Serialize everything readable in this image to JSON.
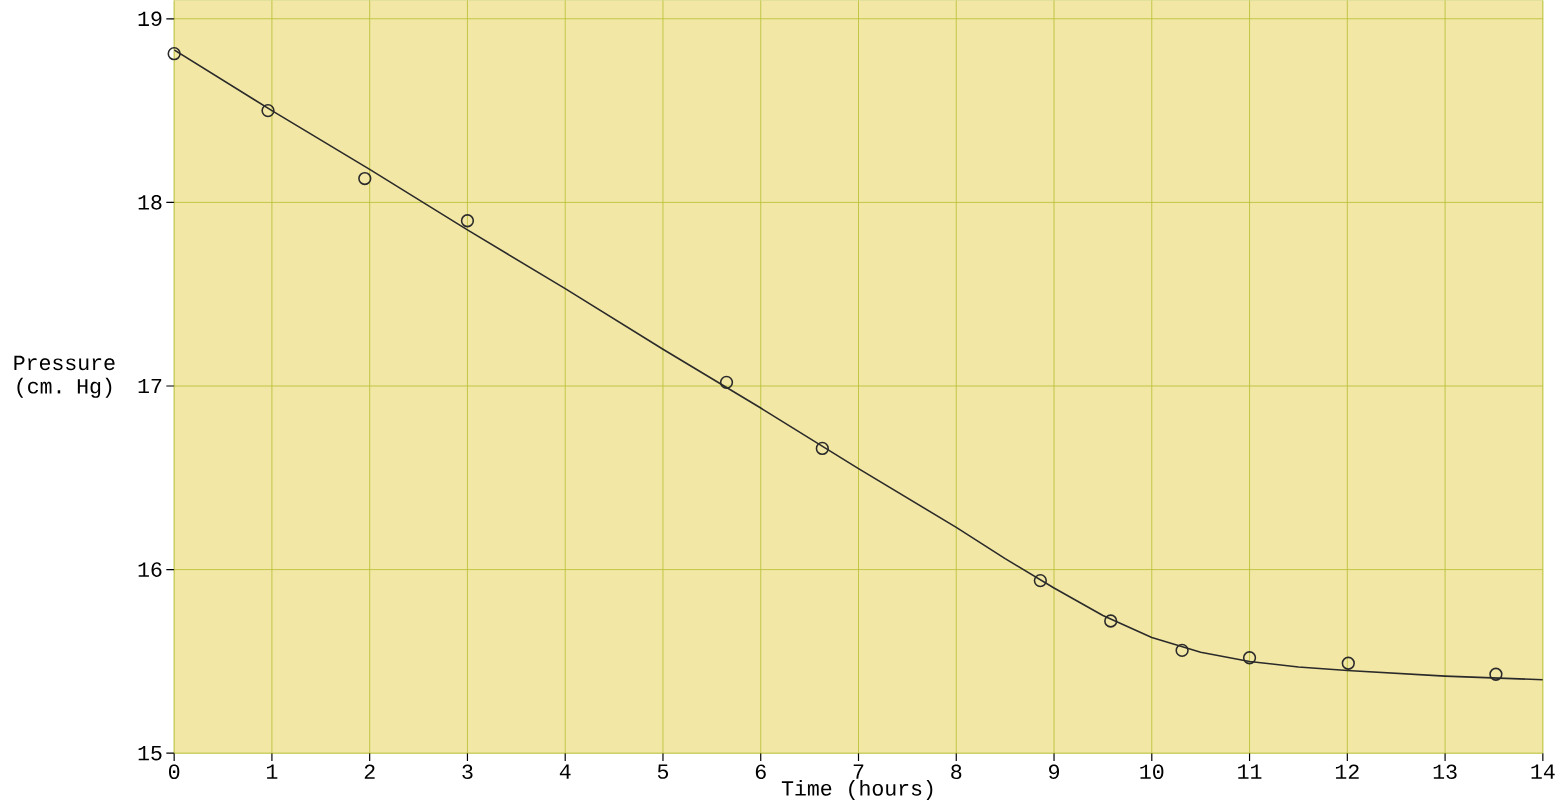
{
  "chart_data": {
    "type": "scatter",
    "xlabel": "Time (hours)",
    "ylabel": "Pressure (cm. Hg)",
    "xlim": [
      0,
      14
    ],
    "ylim": [
      15,
      19.1
    ],
    "xticks": [
      0,
      1,
      2,
      3,
      4,
      5,
      6,
      7,
      8,
      9,
      10,
      11,
      12,
      13,
      14
    ],
    "yticks": [
      15,
      16,
      17,
      18,
      19
    ],
    "grid": true,
    "series": [
      {
        "marker": "circle",
        "color": "#2a2a2a",
        "x": [
          0,
          0.96,
          1.95,
          3.0,
          5.65,
          6.63,
          8.86,
          9.58,
          10.31,
          11.0,
          12.01,
          13.52
        ],
        "values": [
          18.81,
          18.5,
          18.13,
          17.9,
          17.02,
          16.66,
          15.94,
          15.72,
          15.56,
          15.52,
          15.49,
          15.43
        ]
      },
      {
        "type": "line",
        "marker": "none",
        "line_style": "solid",
        "color": "#2a2a2a",
        "x": [
          0,
          1,
          2,
          3,
          4,
          5,
          6,
          7,
          8,
          8.5,
          9,
          9.5,
          10,
          10.5,
          11,
          11.5,
          12,
          13,
          14
        ],
        "values": [
          18.83,
          18.5,
          18.18,
          17.85,
          17.53,
          17.2,
          16.88,
          16.55,
          16.23,
          16.06,
          15.9,
          15.75,
          15.63,
          15.55,
          15.5,
          15.47,
          15.45,
          15.42,
          15.4
        ]
      }
    ]
  }
}
